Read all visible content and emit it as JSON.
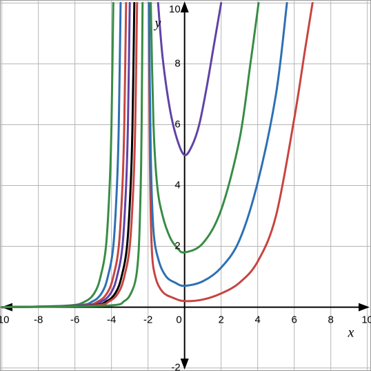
{
  "chart_data": {
    "type": "line",
    "xlabel": "x",
    "ylabel": "y",
    "xlim": [
      -10.1,
      10.2
    ],
    "ylim": [
      -2.1,
      10.1
    ],
    "xticks": [
      -10,
      -8,
      -6,
      -4,
      -2,
      0,
      2,
      4,
      6,
      8,
      10
    ],
    "yticks": [
      -2,
      2,
      4,
      6,
      8,
      10
    ],
    "grid": true,
    "series": [
      {
        "color": "#388c46",
        "x": [
          -10,
          -6.4,
          -5.4,
          -4.9,
          -4.6,
          -4.3,
          -4.1,
          -4.0,
          -3.9
        ],
        "values": [
          0,
          0.05,
          0.2,
          0.5,
          1,
          2,
          4,
          6,
          10
        ]
      },
      {
        "color": "#2d70b3",
        "x": [
          -10,
          -6,
          -5,
          -4.5,
          -4.2,
          -3.9,
          -3.7,
          -3.6,
          -3.5
        ],
        "values": [
          0,
          0.05,
          0.2,
          0.5,
          1,
          2,
          4,
          6,
          10
        ]
      },
      {
        "color": "#c74440",
        "x": [
          -10,
          -5.7,
          -4.7,
          -4.2,
          -3.9,
          -3.6,
          -3.4,
          -3.3,
          -3.2
        ],
        "values": [
          0,
          0.05,
          0.2,
          0.5,
          1,
          2,
          4,
          6,
          10
        ]
      },
      {
        "color": "#6042a6",
        "x": [
          -10,
          -5.5,
          -4.5,
          -4,
          -3.7,
          -3.4,
          -3.2,
          -3.1,
          -3.0
        ],
        "values": [
          0,
          0.05,
          0.2,
          0.5,
          1,
          2,
          4,
          6,
          10
        ]
      },
      {
        "color": "#000000",
        "x": [
          -10,
          -5.25,
          -4.25,
          -3.75,
          -3.45,
          -3.15,
          -2.95,
          -2.85,
          -2.75
        ],
        "values": [
          0,
          0.05,
          0.2,
          0.5,
          1,
          2,
          4,
          6,
          10
        ]
      },
      {
        "color": "#c74440",
        "x": [
          -10,
          -5.1,
          -4.1,
          -3.6,
          -3.3,
          -3.0,
          -2.8,
          -2.7,
          -2.6
        ],
        "values": [
          0,
          0.05,
          0.2,
          0.5,
          1,
          2,
          4,
          6,
          10
        ]
      },
      {
        "color": "#388c46",
        "x": [
          -10,
          -4.3,
          -3.3,
          -2.9,
          -2.65,
          -2.5,
          -2.4,
          -2.35,
          -2.3
        ],
        "values": [
          0,
          0.05,
          0.2,
          0.5,
          1,
          2,
          4,
          6,
          10
        ]
      },
      {
        "color": "#c74440",
        "x": [
          -1.95,
          -1.9,
          -1.8,
          -1.6,
          -1.2,
          -0.6,
          0,
          1,
          2,
          3,
          4,
          5,
          6,
          6.6,
          7
        ],
        "values": [
          10,
          5,
          2,
          1,
          0.5,
          0.3,
          0.2,
          0.25,
          0.45,
          0.8,
          1.5,
          3,
          6.2,
          8.5,
          10
        ]
      },
      {
        "color": "#2d70b3",
        "x": [
          -1.95,
          -1.85,
          -1.7,
          -1.4,
          -1,
          -0.5,
          0,
          1,
          2,
          3,
          4,
          5,
          5.6
        ],
        "values": [
          10,
          5,
          2.5,
          1.5,
          1.0,
          0.8,
          0.7,
          0.85,
          1.3,
          2.2,
          4.1,
          7,
          10
        ]
      },
      {
        "color": "#388c46",
        "x": [
          -1.85,
          -1.7,
          -1.5,
          -1.2,
          -0.8,
          -0.4,
          0,
          1,
          2,
          3,
          3.6,
          4.05
        ],
        "values": [
          10,
          6,
          4,
          3,
          2.3,
          1.95,
          1.8,
          2.1,
          3.2,
          5.5,
          8,
          10
        ]
      },
      {
        "color": "#6042a6",
        "x": [
          -1.45,
          -1.2,
          -0.8,
          -0.4,
          0,
          0.4,
          0.8,
          1.2,
          1.6,
          2.0
        ],
        "values": [
          10,
          8.2,
          6.5,
          5.5,
          5,
          5.3,
          6,
          7.2,
          8.6,
          10
        ]
      }
    ]
  }
}
